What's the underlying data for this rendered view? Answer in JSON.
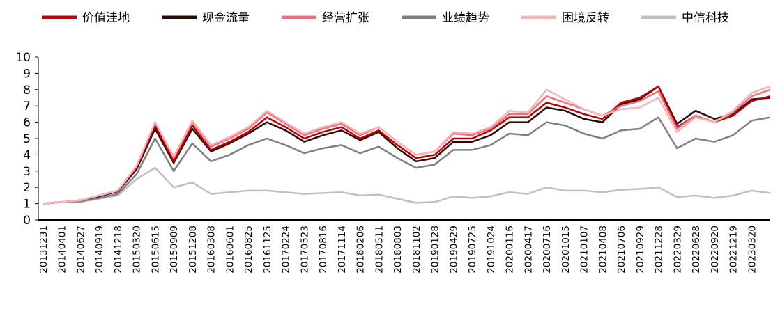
{
  "chart_data": {
    "type": "line",
    "categories": [
      "20131231",
      "20140401",
      "20140627",
      "20140919",
      "20141218",
      "20150320",
      "20150615",
      "20150909",
      "20151208",
      "20160308",
      "20160601",
      "20160825",
      "20161125",
      "20170224",
      "20170523",
      "20170816",
      "20171114",
      "20180206",
      "20180511",
      "20180803",
      "20181102",
      "20190128",
      "20190429",
      "20190725",
      "20191024",
      "20200116",
      "20200417",
      "20200716",
      "20201015",
      "20210107",
      "20210408",
      "20210706",
      "20210929",
      "20211228",
      "20220329",
      "20220628",
      "20220920",
      "20221219",
      "20230320",
      null
    ],
    "series": [
      {
        "name": "价值洼地",
        "color": "#c00000",
        "values": [
          1,
          1.1,
          1.2,
          1.5,
          1.8,
          3.2,
          5.8,
          3.6,
          5.8,
          4.3,
          4.8,
          5.4,
          6.3,
          5.7,
          5,
          5.4,
          5.7,
          5,
          5.5,
          4.6,
          3.8,
          4,
          5,
          5,
          5.5,
          6.3,
          6.3,
          7.2,
          6.9,
          6.5,
          6.2,
          7.2,
          7.5,
          8.2,
          5.7,
          6.4,
          6,
          6.4,
          7.3,
          7.6
        ]
      },
      {
        "name": "现金流量",
        "color": "#2b0a0a",
        "values": [
          1,
          1.1,
          1.2,
          1.45,
          1.75,
          3.1,
          5.6,
          3.5,
          5.6,
          4.2,
          4.7,
          5.3,
          6,
          5.5,
          4.8,
          5.2,
          5.5,
          4.9,
          5.4,
          4.4,
          3.6,
          3.8,
          4.8,
          4.8,
          5.2,
          6,
          6,
          6.9,
          6.7,
          6.2,
          6,
          7.1,
          7.4,
          8.2,
          5.9,
          6.7,
          6.2,
          6.5,
          7.4,
          7.5
        ]
      },
      {
        "name": "经营扩张",
        "color": "#f0707a",
        "values": [
          1,
          1.1,
          1.2,
          1.5,
          1.8,
          3.3,
          6,
          3.8,
          6,
          4.5,
          5,
          5.6,
          6.6,
          5.9,
          5.2,
          5.6,
          5.9,
          5.2,
          5.7,
          4.8,
          4,
          4.2,
          5.3,
          5.2,
          5.6,
          6.5,
          6.5,
          7.6,
          7.2,
          6.8,
          6.4,
          7,
          7.3,
          7.9,
          5.6,
          6.4,
          6,
          6.6,
          7.6,
          8
        ]
      },
      {
        "name": "业绩趋势",
        "color": "#7f7f7f",
        "values": [
          1,
          1.1,
          1.15,
          1.35,
          1.6,
          2.8,
          5,
          3,
          4.7,
          3.6,
          4,
          4.6,
          5,
          4.6,
          4.1,
          4.4,
          4.6,
          4.1,
          4.5,
          3.8,
          3.2,
          3.4,
          4.3,
          4.3,
          4.6,
          5.3,
          5.2,
          6,
          5.8,
          5.3,
          5,
          5.5,
          5.6,
          6.3,
          4.4,
          5,
          4.8,
          5.2,
          6.1,
          6.3
        ]
      },
      {
        "name": "困境反转",
        "color": "#f8b4b8",
        "values": [
          1,
          1.1,
          1.2,
          1.5,
          1.8,
          3.3,
          6,
          3.9,
          6.1,
          4.6,
          5.1,
          5.7,
          6.7,
          6,
          5.3,
          5.7,
          6,
          5.3,
          5.7,
          4.8,
          4,
          4.2,
          5.4,
          5.3,
          5.7,
          6.7,
          6.6,
          8,
          7.4,
          6.8,
          6.4,
          6.8,
          6.9,
          7.5,
          5.4,
          6.3,
          6,
          6.7,
          7.8,
          8.2
        ]
      },
      {
        "name": "中信科技",
        "color": "#bfbfbf",
        "values": [
          1,
          1.1,
          1.1,
          1.3,
          1.5,
          2.5,
          3.2,
          2,
          2.3,
          1.6,
          1.7,
          1.8,
          1.8,
          1.7,
          1.6,
          1.65,
          1.7,
          1.5,
          1.55,
          1.3,
          1.05,
          1.1,
          1.45,
          1.35,
          1.45,
          1.7,
          1.6,
          2,
          1.8,
          1.8,
          1.7,
          1.85,
          1.9,
          2,
          1.4,
          1.5,
          1.35,
          1.5,
          1.8,
          1.65
        ]
      }
    ],
    "ylim": [
      0,
      10
    ],
    "yticks": [
      0,
      1,
      2,
      3,
      4,
      5,
      6,
      7,
      8,
      9,
      10
    ]
  }
}
